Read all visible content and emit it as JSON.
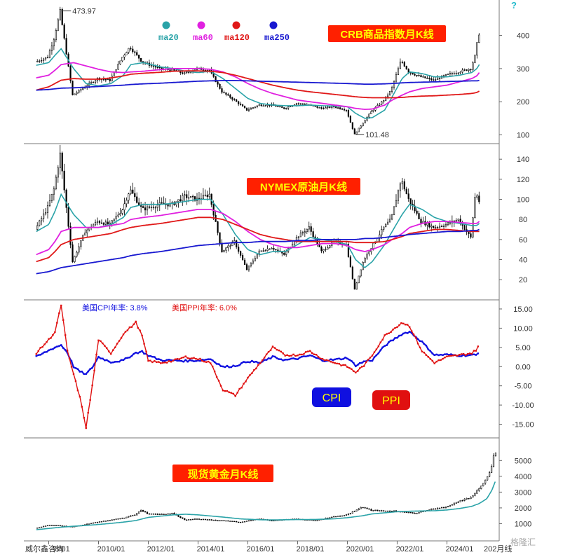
{
  "app": {
    "help_glyph": "?",
    "footer": {
      "left": "威尔鑫咨询",
      "right": "202月线"
    },
    "watermark": "格隆汇"
  },
  "colors": {
    "candle": "#000000",
    "ma20": "#2aa3a8",
    "ma60": "#e020e0",
    "ma120": "#e01818",
    "ma250": "#1818d0",
    "title_box": "#ff2000",
    "title_text": "#ffff00",
    "cpi": "#1010e0",
    "ppi": "#e01010",
    "axis": "#666666"
  },
  "chart_data": [
    {
      "id": "crb",
      "type": "line",
      "title": "CRB商品指数月K线",
      "x": [
        2007.5,
        2008.0,
        2008.25,
        2008.5,
        2009.0,
        2009.5,
        2010.0,
        2010.5,
        2011.0,
        2011.3,
        2011.8,
        2012.5,
        2013.0,
        2013.5,
        2014.0,
        2014.5,
        2015.0,
        2015.5,
        2016.0,
        2016.5,
        2017.0,
        2017.5,
        2018.0,
        2018.5,
        2019.0,
        2019.5,
        2020.0,
        2020.33,
        2020.7,
        2021.0,
        2021.5,
        2021.8,
        2022.2,
        2022.5,
        2023.0,
        2023.5,
        2024.0,
        2024.5,
        2025.0,
        2025.2,
        2025.3
      ],
      "series": [
        {
          "name": "",
          "values": [
            320,
            335,
            390,
            473.97,
            220,
            245,
            270,
            265,
            335,
            365,
            320,
            300,
            295,
            285,
            300,
            295,
            230,
            205,
            175,
            190,
            190,
            180,
            195,
            190,
            180,
            185,
            175,
            101.48,
            140,
            170,
            205,
            235,
            325,
            290,
            275,
            265,
            280,
            290,
            300,
            345,
            405
          ]
        },
        {
          "name": "",
          "values": [
            310,
            318,
            340,
            360,
            300,
            255,
            248,
            255,
            280,
            312,
            318,
            305,
            300,
            292,
            288,
            292,
            270,
            240,
            210,
            195,
            190,
            188,
            188,
            190,
            188,
            187,
            185,
            165,
            150,
            152,
            175,
            215,
            270,
            290,
            285,
            275,
            275,
            280,
            288,
            300,
            312
          ]
        },
        {
          "name": "",
          "values": [
            272,
            280,
            295,
            312,
            318,
            308,
            298,
            290,
            288,
            290,
            292,
            297,
            300,
            300,
            300,
            298,
            290,
            275,
            255,
            238,
            225,
            215,
            205,
            200,
            195,
            190,
            185,
            180,
            177,
            178,
            190,
            205,
            220,
            230,
            240,
            245,
            250,
            260,
            270,
            278,
            288
          ]
        },
        {
          "name": "",
          "values": [
            235,
            245,
            255,
            265,
            270,
            268,
            268,
            272,
            278,
            283,
            286,
            289,
            292,
            293,
            293,
            292,
            288,
            280,
            270,
            260,
            250,
            242,
            235,
            230,
            226,
            222,
            218,
            215,
            213,
            212,
            212,
            212,
            213,
            215,
            217,
            218,
            220,
            222,
            225,
            228,
            232
          ]
        },
        {
          "name": "",
          "values": [
            235,
            237,
            239,
            241,
            242,
            244,
            246,
            248,
            250,
            252,
            254,
            256,
            258,
            260,
            262,
            263,
            264,
            264,
            263,
            262,
            261,
            260,
            259,
            258,
            257,
            256,
            255,
            254,
            253,
            253,
            254,
            255,
            257,
            258,
            259,
            260,
            261,
            262,
            263,
            263,
            264
          ]
        }
      ],
      "ylim": [
        80,
        490
      ],
      "yticks": [
        100,
        200,
        300,
        400
      ],
      "annotations": {
        "high": "473.97",
        "low": "101.48"
      },
      "legend": [
        "ma20",
        "ma60",
        "ma120",
        "ma250"
      ]
    },
    {
      "id": "oil",
      "type": "line",
      "title": "NYMEX原油月K线",
      "x": [
        2007.5,
        2008.0,
        2008.25,
        2008.5,
        2009.0,
        2009.5,
        2010.0,
        2010.5,
        2011.0,
        2011.3,
        2011.8,
        2012.5,
        2013.0,
        2013.5,
        2014.0,
        2014.5,
        2015.0,
        2015.5,
        2016.0,
        2016.5,
        2017.0,
        2017.5,
        2018.0,
        2018.5,
        2019.0,
        2019.5,
        2020.0,
        2020.33,
        2020.7,
        2021.0,
        2021.5,
        2021.8,
        2022.2,
        2022.5,
        2023.0,
        2023.5,
        2024.0,
        2024.5,
        2025.0,
        2025.2,
        2025.3
      ],
      "series": [
        {
          "name": "",
          "values": [
            70,
            92,
            110,
            145,
            38,
            68,
            78,
            75,
            90,
            110,
            90,
            95,
            95,
            103,
            100,
            105,
            48,
            58,
            30,
            48,
            52,
            45,
            62,
            72,
            48,
            58,
            55,
            10,
            40,
            52,
            72,
            80,
            120,
            100,
            78,
            72,
            75,
            80,
            62,
            110,
            98
          ]
        },
        {
          "name": "",
          "values": [
            68,
            75,
            88,
            105,
            85,
            72,
            72,
            75,
            82,
            92,
            95,
            95,
            96,
            98,
            100,
            100,
            85,
            65,
            50,
            45,
            48,
            48,
            55,
            62,
            60,
            58,
            55,
            40,
            32,
            38,
            55,
            68,
            85,
            95,
            90,
            82,
            78,
            76,
            74,
            74,
            76
          ]
        },
        {
          "name": "",
          "values": [
            45,
            50,
            58,
            68,
            72,
            72,
            72,
            74,
            76,
            80,
            82,
            84,
            86,
            88,
            90,
            90,
            86,
            78,
            68,
            60,
            55,
            52,
            52,
            54,
            56,
            56,
            54,
            50,
            48,
            50,
            55,
            60,
            66,
            72,
            76,
            78,
            78,
            77,
            76,
            76,
            78
          ]
        },
        {
          "name": "",
          "values": [
            38,
            42,
            48,
            55,
            60,
            62,
            64,
            66,
            70,
            72,
            74,
            76,
            78,
            80,
            82,
            82,
            80,
            75,
            70,
            65,
            62,
            60,
            58,
            58,
            58,
            58,
            58,
            57,
            57,
            57,
            58,
            60,
            63,
            66,
            68,
            70,
            70,
            69,
            68,
            68,
            68
          ]
        },
        {
          "name": "",
          "values": [
            26,
            28,
            30,
            32,
            34,
            36,
            38,
            40,
            42,
            44,
            46,
            48,
            50,
            52,
            54,
            55,
            56,
            57,
            57,
            58,
            58,
            58,
            59,
            59,
            60,
            60,
            60,
            60,
            61,
            61,
            62,
            63,
            64,
            65,
            66,
            67,
            68,
            68,
            69,
            69,
            70
          ]
        }
      ],
      "ylim": [
        2,
        152
      ],
      "yticks": [
        20,
        40,
        60,
        80,
        100,
        120,
        140
      ]
    },
    {
      "id": "cpi_ppi",
      "type": "line",
      "legend_cpi": "美国CPI年率: 3.8%",
      "legend_ppi": "美国PPI年率: 6.0%",
      "badge_cpi": "CPI",
      "badge_ppi": "PPI",
      "x": [
        2007.5,
        2008.0,
        2008.25,
        2008.5,
        2008.75,
        2009.0,
        2009.25,
        2009.5,
        2009.75,
        2010.0,
        2010.5,
        2011.0,
        2011.5,
        2011.75,
        2012.0,
        2012.5,
        2013.0,
        2013.5,
        2014.0,
        2014.5,
        2015.0,
        2015.5,
        2016.0,
        2016.5,
        2017.0,
        2017.5,
        2018.0,
        2018.5,
        2019.0,
        2019.5,
        2020.0,
        2020.33,
        2020.7,
        2021.0,
        2021.5,
        2021.8,
        2022.2,
        2022.5,
        2023.0,
        2023.5,
        2024.0,
        2024.5,
        2025.0,
        2025.2,
        2025.3
      ],
      "series": [
        {
          "name": "",
          "values": [
            2.5,
            4.2,
            5.0,
            5.6,
            3.7,
            0.0,
            -1.3,
            -2.0,
            -0.2,
            2.5,
            1.2,
            1.6,
            3.6,
            3.9,
            2.9,
            1.7,
            1.6,
            1.5,
            1.6,
            2.0,
            -0.1,
            0.2,
            1.4,
            1.0,
            2.5,
            1.7,
            2.1,
            2.9,
            1.6,
            1.8,
            2.3,
            0.3,
            1.4,
            1.7,
            5.4,
            6.8,
            8.5,
            9.1,
            6.4,
            3.0,
            3.1,
            2.9,
            3.0,
            3.0,
            3.8
          ]
        },
        {
          "name": "",
          "values": [
            3.5,
            7.0,
            9.0,
            16.0,
            4.0,
            -2.0,
            -8.0,
            -15.8,
            -5.0,
            7.0,
            3.5,
            8.5,
            11.5,
            8.0,
            1.5,
            1.0,
            1.5,
            2.5,
            2.0,
            1.0,
            -6.0,
            -7.5,
            -3.0,
            1.0,
            5.0,
            3.0,
            3.0,
            4.0,
            2.0,
            1.0,
            0.0,
            -1.5,
            0.5,
            3.0,
            8.0,
            9.5,
            11.5,
            10.5,
            4.0,
            1.0,
            2.5,
            3.0,
            3.5,
            4.5,
            6.0
          ]
        }
      ],
      "ylim": [
        -18,
        17
      ],
      "yticks": [
        15,
        10,
        5,
        0,
        -5,
        -10,
        -15
      ]
    },
    {
      "id": "gold",
      "type": "line",
      "title": "现货黄金月K线",
      "x": [
        2007.5,
        2008.0,
        2008.5,
        2009.0,
        2009.5,
        2010.0,
        2010.5,
        2011.0,
        2011.5,
        2011.75,
        2012.0,
        2012.5,
        2013.0,
        2013.5,
        2014.0,
        2015.0,
        2015.75,
        2016.5,
        2017.0,
        2018.0,
        2018.75,
        2019.5,
        2020.0,
        2020.6,
        2021.0,
        2022.0,
        2022.75,
        2023.5,
        2024.0,
        2024.5,
        2025.0,
        2025.3,
        2025.6,
        2025.8,
        2025.95
      ],
      "series": [
        {
          "name": "",
          "values": [
            700,
            900,
            880,
            800,
            950,
            1100,
            1230,
            1350,
            1550,
            1850,
            1650,
            1600,
            1650,
            1250,
            1300,
            1200,
            1100,
            1300,
            1200,
            1300,
            1200,
            1450,
            1550,
            2050,
            1850,
            1800,
            1650,
            1950,
            2050,
            2400,
            2650,
            3200,
            3800,
            4300,
            5500
          ]
        },
        {
          "name": "",
          "values": [
            620,
            700,
            780,
            840,
            890,
            950,
            1020,
            1100,
            1200,
            1300,
            1400,
            1480,
            1560,
            1600,
            1560,
            1420,
            1300,
            1250,
            1240,
            1260,
            1270,
            1310,
            1380,
            1500,
            1620,
            1760,
            1800,
            1820,
            1870,
            1960,
            2100,
            2280,
            2580,
            3100,
            3700
          ]
        }
      ],
      "ylim": [
        0,
        6300
      ],
      "yticks": [
        1000,
        2000,
        3000,
        4000,
        5000
      ]
    }
  ],
  "x_axis": {
    "range": [
      2007.0,
      2026.1
    ],
    "ticks": [
      {
        "value": 2008.0,
        "label": "!8/01"
      },
      {
        "value": 2010.0,
        "label": "2010/01"
      },
      {
        "value": 2012.0,
        "label": "2012/01"
      },
      {
        "value": 2014.0,
        "label": "2014/01"
      },
      {
        "value": 2016.0,
        "label": "2016/01"
      },
      {
        "value": 2018.0,
        "label": "2018/01"
      },
      {
        "value": 2020.0,
        "label": "2020/01"
      },
      {
        "value": 2022.0,
        "label": "2022/01"
      },
      {
        "value": 2024.0,
        "label": "2024/01"
      }
    ]
  }
}
